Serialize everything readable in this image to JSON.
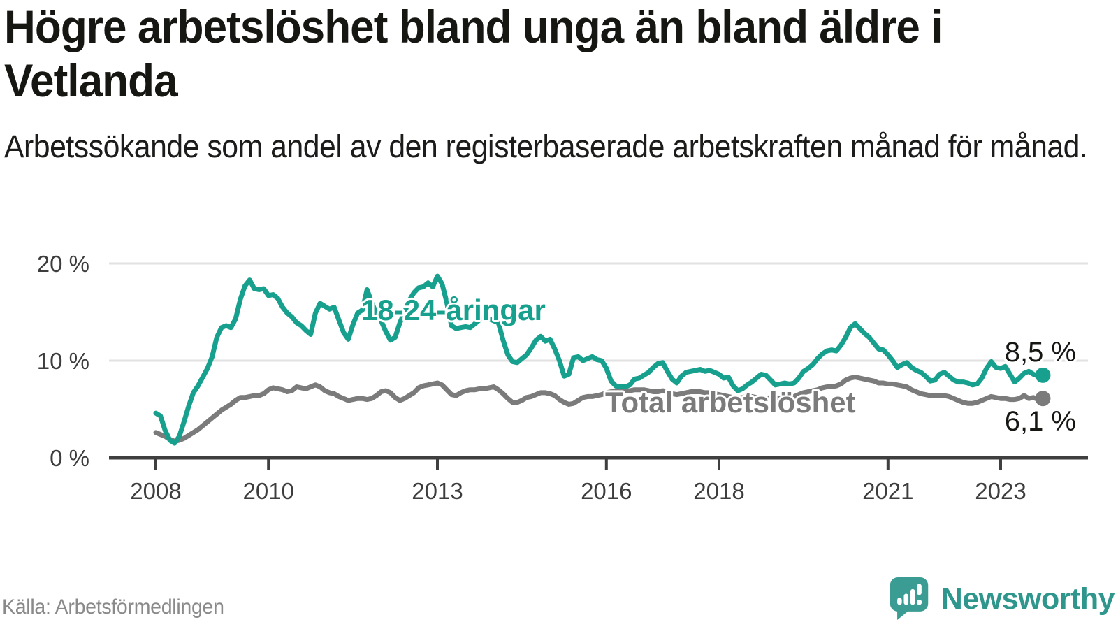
{
  "title": "Högre arbetslöshet bland unga än bland äldre i Vetlanda",
  "subtitle": "Arbetssökande som andel av den registerbaserade arbetskraften månad för månad.",
  "source": {
    "text": "Källa: Arbetsförmedlingen"
  },
  "branding": {
    "name": "Newsworthy",
    "icon": "newsworthy-speech-bubble-bar-chart-icon"
  },
  "colors": {
    "young_line": "#17a08e",
    "total_line": "#7b7b7b",
    "title_text": "#161613",
    "axis_text": "#3d3d3d",
    "grid_line": "#e2e2e2",
    "axis_line": "#3f3f3f",
    "value_label_text": "#161613",
    "source_text": "#8a8a8a",
    "brand": "#2e968c"
  },
  "chart_data": {
    "type": "line",
    "title": "Högre arbetslöshet bland unga än bland äldre i Vetlanda",
    "xlabel": "",
    "ylabel": "",
    "grid": true,
    "legend_position": "inline-labels",
    "x_axis": {
      "tick_years": [
        2008,
        2010,
        2013,
        2016,
        2018,
        2021,
        2023
      ],
      "start": "2008-01",
      "end": "2023-10"
    },
    "y_axis": {
      "values": [
        0,
        10,
        20
      ],
      "tick_labels": [
        "0 %",
        "10 %",
        "20 %"
      ],
      "ylim": [
        0,
        21.5
      ],
      "unit": "%"
    },
    "series": [
      {
        "name": "Total arbetslöshet",
        "color": "#7b7b7b",
        "end_label": "6,1 %",
        "end_value": 6.1,
        "start": "2008-01",
        "values": [
          2.6,
          2.4,
          2.2,
          1.9,
          1.7,
          1.8,
          2.0,
          2.3,
          2.6,
          2.9,
          3.3,
          3.7,
          4.1,
          4.5,
          4.9,
          5.2,
          5.5,
          5.9,
          6.2,
          6.2,
          6.3,
          6.4,
          6.4,
          6.6,
          7.0,
          7.2,
          7.1,
          7.0,
          6.8,
          6.9,
          7.3,
          7.2,
          7.1,
          7.3,
          7.5,
          7.3,
          6.9,
          6.7,
          6.6,
          6.3,
          6.1,
          5.9,
          6.0,
          6.1,
          6.1,
          6.0,
          6.1,
          6.4,
          6.8,
          6.9,
          6.7,
          6.2,
          5.9,
          6.1,
          6.4,
          6.7,
          7.2,
          7.4,
          7.5,
          7.6,
          7.7,
          7.5,
          7.0,
          6.5,
          6.4,
          6.7,
          6.9,
          7.0,
          7.0,
          7.1,
          7.1,
          7.2,
          7.3,
          7.0,
          6.6,
          6.1,
          5.7,
          5.7,
          5.9,
          6.2,
          6.3,
          6.5,
          6.7,
          6.7,
          6.6,
          6.4,
          6.0,
          5.7,
          5.5,
          5.6,
          5.9,
          6.2,
          6.3,
          6.3,
          6.4,
          6.5,
          6.7,
          6.8,
          6.9,
          7.0,
          6.9,
          6.9,
          7.0,
          7.0,
          7.0,
          6.9,
          6.8,
          6.8,
          6.9,
          6.8,
          6.6,
          6.5,
          6.6,
          6.7,
          6.8,
          6.8,
          6.8,
          6.7,
          6.7,
          6.6,
          6.5,
          6.4,
          6.3,
          6.2,
          6.1,
          6.2,
          6.3,
          6.3,
          6.2,
          6.1,
          6.1,
          6.2,
          6.2,
          6.1,
          6.1,
          6.2,
          6.3,
          6.5,
          6.7,
          6.8,
          6.9,
          7.0,
          7.2,
          7.3,
          7.3,
          7.4,
          7.6,
          8.0,
          8.2,
          8.3,
          8.2,
          8.1,
          8.0,
          7.9,
          7.7,
          7.7,
          7.6,
          7.6,
          7.5,
          7.4,
          7.3,
          7.0,
          6.8,
          6.6,
          6.5,
          6.4,
          6.4,
          6.4,
          6.4,
          6.3,
          6.1,
          5.9,
          5.7,
          5.6,
          5.6,
          5.7,
          5.9,
          6.1,
          6.3,
          6.2,
          6.1,
          6.1,
          6.0,
          6.0,
          6.1,
          6.4,
          6.1,
          6.2,
          6.0,
          6.1
        ]
      },
      {
        "name": "18-24-åringar",
        "color": "#17a08e",
        "end_label": "8,5 %",
        "end_value": 8.5,
        "start": "2008-01",
        "values": [
          4.6,
          4.3,
          2.8,
          1.8,
          1.5,
          2.2,
          3.7,
          5.3,
          6.7,
          7.4,
          8.3,
          9.2,
          10.4,
          12.4,
          13.4,
          13.6,
          13.4,
          14.3,
          16.3,
          17.7,
          18.3,
          17.4,
          17.3,
          17.4,
          16.7,
          16.8,
          16.4,
          15.5,
          14.9,
          14.5,
          13.9,
          13.6,
          13.1,
          12.7,
          14.9,
          15.9,
          15.6,
          15.3,
          15.5,
          14.2,
          12.9,
          12.2,
          13.7,
          14.9,
          15.2,
          17.3,
          16.0,
          14.8,
          14.1,
          13.0,
          12.1,
          12.4,
          13.9,
          15.0,
          16.2,
          17.0,
          17.5,
          17.6,
          18.0,
          17.6,
          18.7,
          17.9,
          16.0,
          13.6,
          13.3,
          13.4,
          13.5,
          13.4,
          13.8,
          14.2,
          14.5,
          14.3,
          14.1,
          13.9,
          12.1,
          10.6,
          9.9,
          9.8,
          10.2,
          10.6,
          11.3,
          12.1,
          12.5,
          12.0,
          12.2,
          11.2,
          10.0,
          8.4,
          8.6,
          10.3,
          10.4,
          10.0,
          10.2,
          10.4,
          10.1,
          10.0,
          9.2,
          7.9,
          7.4,
          7.3,
          7.3,
          7.5,
          8.1,
          8.2,
          8.5,
          8.8,
          9.3,
          9.7,
          9.8,
          8.9,
          8.1,
          7.7,
          8.4,
          8.8,
          8.9,
          9.0,
          9.1,
          8.9,
          9.0,
          8.8,
          8.6,
          8.2,
          8.3,
          7.4,
          6.9,
          7.1,
          7.5,
          7.8,
          8.2,
          8.6,
          8.5,
          8.0,
          7.5,
          7.6,
          7.7,
          7.6,
          7.7,
          8.2,
          8.9,
          9.2,
          9.6,
          10.2,
          10.7,
          11.0,
          11.1,
          11.0,
          11.6,
          12.4,
          13.4,
          13.8,
          13.3,
          12.8,
          12.4,
          11.8,
          11.2,
          11.1,
          10.6,
          10.0,
          9.3,
          9.6,
          9.8,
          9.3,
          9.0,
          8.8,
          8.4,
          7.9,
          8.0,
          8.6,
          8.8,
          8.4,
          8.0,
          7.8,
          7.8,
          7.7,
          7.5,
          7.6,
          8.2,
          9.2,
          9.9,
          9.3,
          9.2,
          9.4,
          8.6,
          7.8,
          8.2,
          8.7,
          8.9,
          8.6,
          8.4,
          8.5
        ]
      }
    ]
  }
}
